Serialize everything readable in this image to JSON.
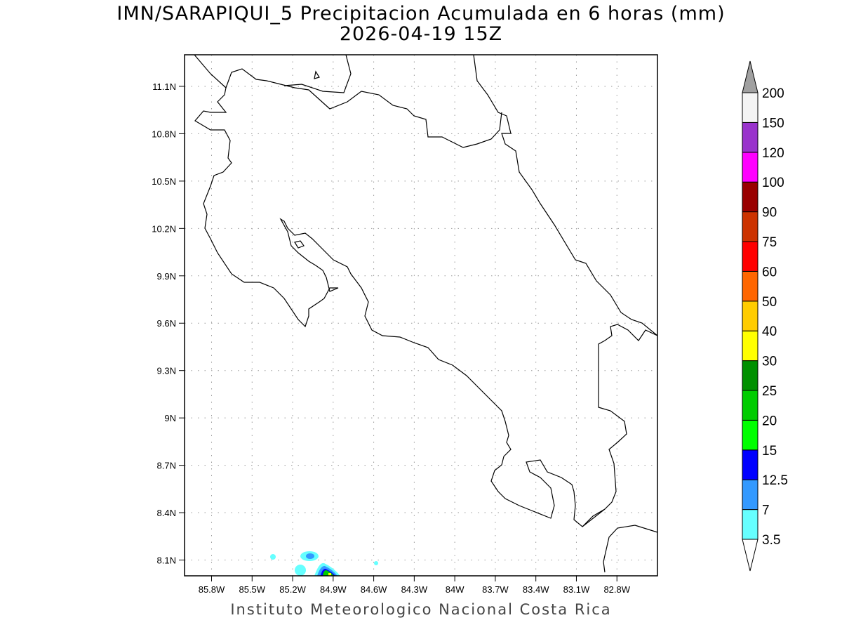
{
  "title_line1": "IMN/SARAPIQUI_5 Precipitacion Acumulada en 6 horas (mm)",
  "title_line2": "2026-04-19 15Z",
  "footer": "Instituto Meteorologico Nacional Costa Rica",
  "map": {
    "lon_range": [
      -86.0,
      -82.5
    ],
    "lat_range": [
      8.0,
      11.3
    ],
    "grid": "dotted",
    "lon_ticks": [
      {
        "value": -85.8,
        "label": "85.8W"
      },
      {
        "value": -85.5,
        "label": "85.5W"
      },
      {
        "value": -85.2,
        "label": "85.2W"
      },
      {
        "value": -84.9,
        "label": "84.9W"
      },
      {
        "value": -84.6,
        "label": "84.6W"
      },
      {
        "value": -84.3,
        "label": "84.3W"
      },
      {
        "value": -84.0,
        "label": "84W"
      },
      {
        "value": -83.7,
        "label": "83.7W"
      },
      {
        "value": -83.4,
        "label": "83.4W"
      },
      {
        "value": -83.1,
        "label": "83.1W"
      },
      {
        "value": -82.8,
        "label": "82.8W"
      }
    ],
    "lat_ticks": [
      {
        "value": 11.1,
        "label": "11.1N"
      },
      {
        "value": 10.8,
        "label": "10.8N"
      },
      {
        "value": 10.5,
        "label": "10.5N"
      },
      {
        "value": 10.2,
        "label": "10.2N"
      },
      {
        "value": 9.9,
        "label": "9.9N"
      },
      {
        "value": 9.6,
        "label": "9.6N"
      },
      {
        "value": 9.3,
        "label": "9.3N"
      },
      {
        "value": 9.0,
        "label": "9N"
      },
      {
        "value": 8.7,
        "label": "8.7N"
      },
      {
        "value": 8.4,
        "label": "8.4N"
      },
      {
        "value": 8.1,
        "label": "8.1N"
      }
    ]
  },
  "colorbar": {
    "under_color": "#ffffff",
    "over_color": "#a0a0a0",
    "levels": [
      "3.5",
      "7",
      "12.5",
      "15",
      "20",
      "25",
      "30",
      "40",
      "50",
      "60",
      "75",
      "90",
      "100",
      "120",
      "150",
      "200"
    ],
    "colors": [
      "#66ffff",
      "#3399ff",
      "#0000ff",
      "#00ff00",
      "#00cc00",
      "#009000",
      "#ffff00",
      "#ffcc00",
      "#ff6600",
      "#ff0000",
      "#cc3300",
      "#990000",
      "#ff00ff",
      "#9933cc",
      "#f4f4f4"
    ]
  }
}
